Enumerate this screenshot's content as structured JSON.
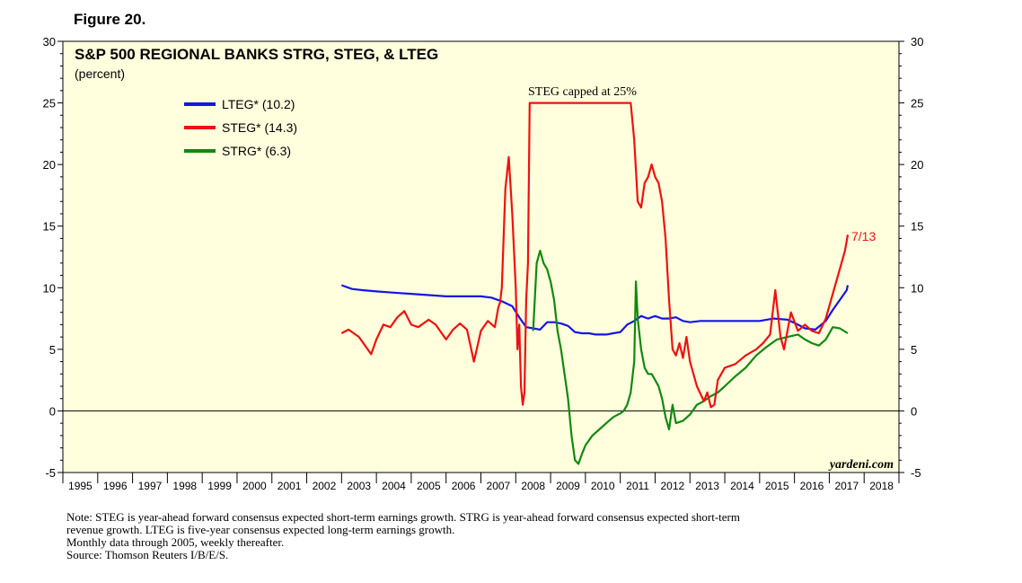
{
  "figure_label": "Figure 20.",
  "chart_data": {
    "type": "line",
    "title": "S&P 500 REGIONAL BANKS STRG, STEG, & LTEG",
    "subtitle": "(percent)",
    "annotation": "STEG capped at 25%",
    "end_label": "7/13",
    "watermark": "yardeni.com",
    "ylim": [
      -5,
      30
    ],
    "y_ticks": [
      -5,
      0,
      5,
      10,
      15,
      20,
      25,
      30
    ],
    "y_tick_labels": [
      "-5",
      "0",
      "5",
      "10",
      "15",
      "20",
      "25",
      "30"
    ],
    "xlim": [
      1995,
      2019
    ],
    "x_tick_labels": [
      "1995",
      "1996",
      "1997",
      "1998",
      "1999",
      "2000",
      "2001",
      "2002",
      "2003",
      "2004",
      "2005",
      "2006",
      "2007",
      "2008",
      "2009",
      "2010",
      "2011",
      "2012",
      "2013",
      "2014",
      "2015",
      "2016",
      "2017",
      "2018"
    ],
    "grid": false,
    "legend_position": "top-left",
    "colors": {
      "LTEG": "#1515e6",
      "STEG": "#ee1111",
      "STRG": "#118811",
      "plot_bg": "#ffffdd"
    },
    "series": [
      {
        "name": "LTEG",
        "label": "LTEG* (10.2)",
        "x": [
          2003.0,
          2003.3,
          2003.6,
          2004.0,
          2004.5,
          2005.0,
          2005.5,
          2006.0,
          2006.5,
          2007.0,
          2007.3,
          2007.6,
          2007.9,
          2008.1,
          2008.3,
          2008.5,
          2008.7,
          2008.9,
          2009.1,
          2009.3,
          2009.5,
          2009.7,
          2009.9,
          2010.1,
          2010.3,
          2010.6,
          2010.8,
          2011.0,
          2011.2,
          2011.4,
          2011.6,
          2011.8,
          2012.0,
          2012.2,
          2012.4,
          2012.6,
          2012.8,
          2013.0,
          2013.3,
          2013.6,
          2014.0,
          2014.5,
          2015.0,
          2015.4,
          2015.8,
          2016.1,
          2016.3,
          2016.6,
          2016.9,
          2017.1,
          2017.3,
          2017.5,
          2017.53
        ],
        "y": [
          10.2,
          9.9,
          9.8,
          9.7,
          9.6,
          9.5,
          9.4,
          9.3,
          9.3,
          9.3,
          9.2,
          8.9,
          8.5,
          7.6,
          6.8,
          6.7,
          6.6,
          7.2,
          7.2,
          7.1,
          6.9,
          6.4,
          6.3,
          6.3,
          6.2,
          6.2,
          6.3,
          6.4,
          7.0,
          7.3,
          7.7,
          7.5,
          7.7,
          7.5,
          7.5,
          7.6,
          7.3,
          7.2,
          7.3,
          7.3,
          7.3,
          7.3,
          7.3,
          7.5,
          7.4,
          7.0,
          6.7,
          6.6,
          7.3,
          8.2,
          9.0,
          9.8,
          10.2
        ]
      },
      {
        "name": "STEG",
        "label": "STEG* (14.3)",
        "x": [
          2003.0,
          2003.2,
          2003.5,
          2003.7,
          2003.85,
          2004.0,
          2004.2,
          2004.4,
          2004.6,
          2004.8,
          2005.0,
          2005.2,
          2005.5,
          2005.7,
          2006.0,
          2006.2,
          2006.4,
          2006.6,
          2006.8,
          2007.0,
          2007.2,
          2007.4,
          2007.5,
          2007.55,
          2007.6,
          2007.7,
          2007.8,
          2007.9,
          2008.0,
          2008.05,
          2008.1,
          2008.15,
          2008.2,
          2008.25,
          2008.3,
          2008.35,
          2008.4,
          2008.45,
          2008.5,
          2008.55,
          2008.6,
          2008.65,
          2008.7,
          2008.75,
          2008.8,
          2008.85,
          2008.9,
          2008.95,
          2009.0,
          2011.0,
          2011.2,
          2011.3,
          2011.4,
          2011.5,
          2011.6,
          2011.7,
          2011.8,
          2011.9,
          2012.0,
          2012.1,
          2012.2,
          2012.3,
          2012.4,
          2012.5,
          2012.6,
          2012.7,
          2012.8,
          2012.9,
          2013.0,
          2013.2,
          2013.4,
          2013.5,
          2013.6,
          2013.7,
          2013.8,
          2014.0,
          2014.3,
          2014.6,
          2014.9,
          2015.1,
          2015.3,
          2015.45,
          2015.6,
          2015.7,
          2015.9,
          2016.1,
          2016.3,
          2016.5,
          2016.7,
          2016.9,
          2017.1,
          2017.3,
          2017.45,
          2017.53
        ],
        "y": [
          6.3,
          6.6,
          6.0,
          5.2,
          4.6,
          5.8,
          7.0,
          6.8,
          7.6,
          8.1,
          7.0,
          6.8,
          7.4,
          7.0,
          5.8,
          6.6,
          7.1,
          6.6,
          4.0,
          6.5,
          7.3,
          6.8,
          8.4,
          8.8,
          10.0,
          18.0,
          20.6,
          16.0,
          10.0,
          5.0,
          7.0,
          2.0,
          0.5,
          1.5,
          9.0,
          12.0,
          25.0,
          25.0,
          25.0,
          25.0,
          25.0,
          25.0,
          25.0,
          25.0,
          25.0,
          25.0,
          25.0,
          25.0,
          25.0,
          25.0,
          25.0,
          25.0,
          22.0,
          17.0,
          16.5,
          18.5,
          19.0,
          20.0,
          19.0,
          18.5,
          17.0,
          14.0,
          9.0,
          5.0,
          4.5,
          5.5,
          4.3,
          6.0,
          4.0,
          2.0,
          0.8,
          1.5,
          0.3,
          0.5,
          2.5,
          3.5,
          3.8,
          4.5,
          5.0,
          5.5,
          6.2,
          9.8,
          6.0,
          5.0,
          8.0,
          6.5,
          7.0,
          6.5,
          6.3,
          7.5,
          9.5,
          11.5,
          13.0,
          14.3
        ]
      },
      {
        "name": "STRG",
        "label": "STRG* (6.3)",
        "x": [
          2008.5,
          2008.6,
          2008.7,
          2008.8,
          2008.9,
          2009.0,
          2009.1,
          2009.2,
          2009.3,
          2009.4,
          2009.5,
          2009.6,
          2009.7,
          2009.8,
          2009.9,
          2010.0,
          2010.2,
          2010.4,
          2010.6,
          2010.8,
          2011.0,
          2011.1,
          2011.2,
          2011.3,
          2011.4,
          2011.45,
          2011.5,
          2011.6,
          2011.7,
          2011.8,
          2011.9,
          2012.0,
          2012.1,
          2012.2,
          2012.3,
          2012.4,
          2012.5,
          2012.6,
          2012.8,
          2013.0,
          2013.2,
          2013.4,
          2013.6,
          2013.8,
          2014.0,
          2014.3,
          2014.6,
          2014.9,
          2015.2,
          2015.5,
          2015.8,
          2016.1,
          2016.3,
          2016.5,
          2016.7,
          2016.9,
          2017.1,
          2017.3,
          2017.53
        ],
        "y": [
          6.5,
          12.0,
          13.0,
          12.0,
          11.5,
          10.5,
          9.0,
          6.5,
          5.0,
          3.0,
          1.0,
          -2.0,
          -4.0,
          -4.3,
          -3.5,
          -2.8,
          -2.0,
          -1.5,
          -1.0,
          -0.5,
          -0.2,
          0.0,
          0.5,
          1.5,
          4.0,
          10.5,
          7.5,
          5.0,
          3.5,
          3.0,
          3.0,
          2.5,
          2.0,
          1.0,
          -0.5,
          -1.5,
          0.5,
          -1.0,
          -0.8,
          -0.3,
          0.5,
          0.8,
          1.2,
          1.5,
          2.0,
          2.8,
          3.5,
          4.5,
          5.2,
          5.8,
          6.0,
          6.2,
          5.8,
          5.5,
          5.3,
          5.8,
          6.8,
          6.7,
          6.3
        ]
      }
    ]
  },
  "notes": [
    "Note: STEG is year-ahead forward consensus expected short-term earnings growth. STRG is year-ahead forward consensus expected short-term",
    "revenue growth. LTEG is five-year consensus expected long-term earnings growth.",
    "Monthly data through 2005, weekly thereafter.",
    "Source: Thomson Reuters I/B/E/S."
  ]
}
